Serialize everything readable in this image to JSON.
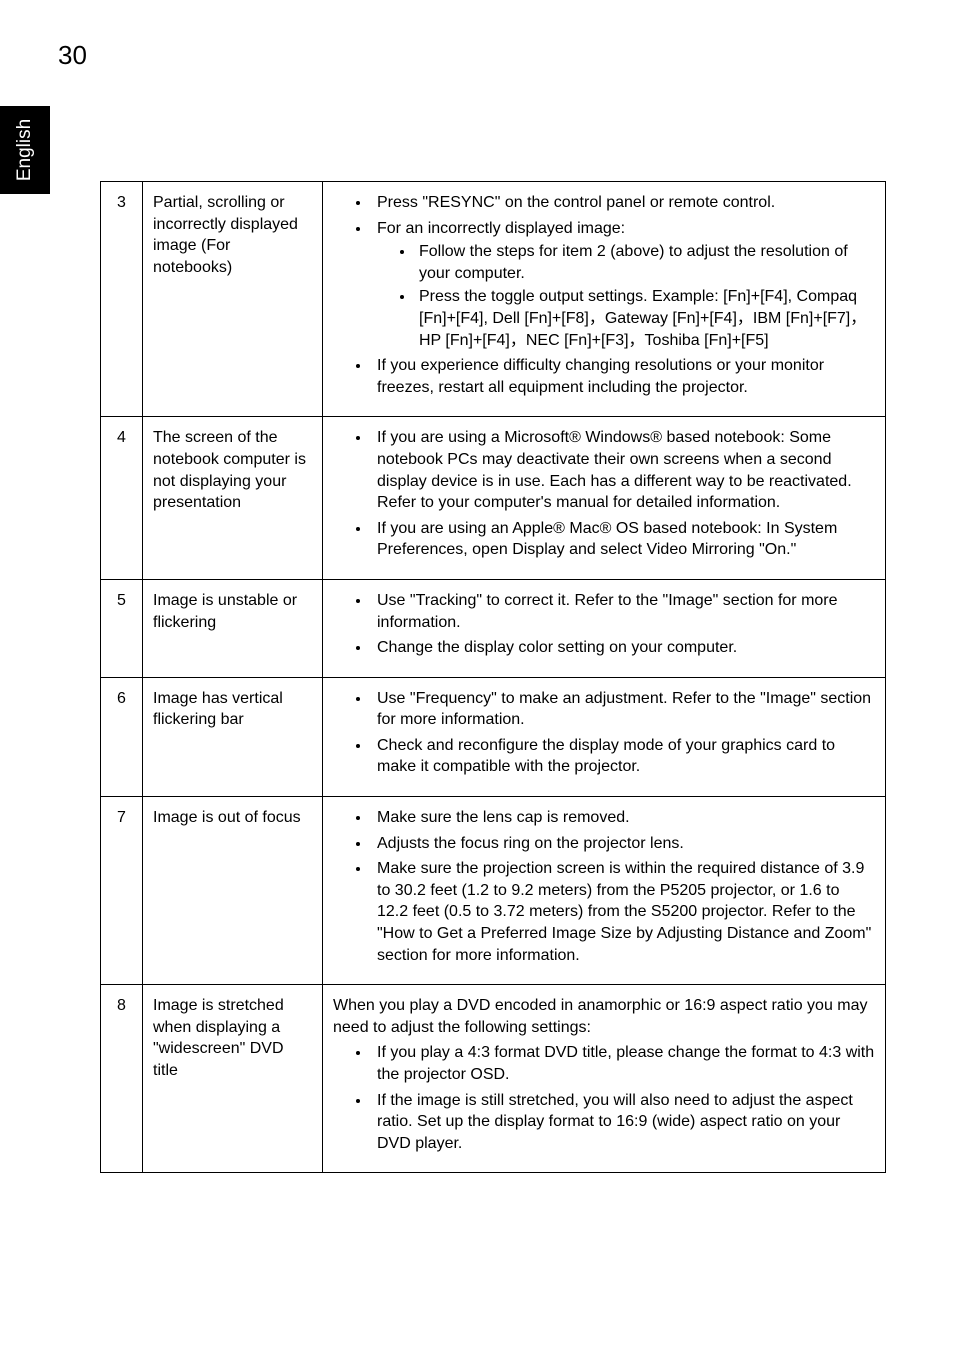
{
  "page": {
    "number": "30",
    "language": "English"
  },
  "table": {
    "row3": {
      "num": "3",
      "problem": "Partial, scrolling or incorrectly displayed image (For notebooks)",
      "b1": "Press \"RESYNC\" on the control panel or remote control.",
      "b2": "For an incorrectly displayed image:",
      "b2a": "Follow the steps for item 2 (above) to adjust the resolution of your computer.",
      "b2b": "Press the toggle output settings. Example: [Fn]+[F4], Compaq [Fn]+[F4], Dell [Fn]+[F8]，Gateway [Fn]+[F4]，IBM [Fn]+[F7]，HP [Fn]+[F4]，NEC [Fn]+[F3]，Toshiba [Fn]+[F5]",
      "b3": "If you experience difficulty changing resolutions or your monitor freezes, restart all equipment including the projector."
    },
    "row4": {
      "num": "4",
      "problem": "The screen of the notebook computer is not displaying your presentation",
      "b1": "If you are using a Microsoft® Windows® based notebook: Some notebook PCs may deactivate their own screens when a second display device is in use. Each has a different way to be reactivated. Refer to your computer's manual for detailed information.",
      "b2": "If you are using an Apple® Mac® OS based notebook: In System Preferences, open Display and select Video Mirroring \"On.\""
    },
    "row5": {
      "num": "5",
      "problem": "Image is unstable or flickering",
      "b1": "Use \"Tracking\" to correct it. Refer to the \"Image\" section for more information.",
      "b2": "Change the display color setting on your computer."
    },
    "row6": {
      "num": "6",
      "problem": "Image has vertical flickering bar",
      "b1": "Use \"Frequency\" to make an adjustment. Refer to the \"Image\" section for more information.",
      "b2": "Check and reconfigure the display mode of your graphics card to make it compatible with the projector."
    },
    "row7": {
      "num": "7",
      "problem": "Image is out of focus",
      "b1": "Make sure the lens cap is removed.",
      "b2": "Adjusts the focus ring on the projector lens.",
      "b3": "Make sure the projection screen is within the required distance of 3.9 to 30.2 feet (1.2 to 9.2 meters) from the P5205 projector, or 1.6 to 12.2 feet (0.5 to 3.72 meters) from the S5200 projector. Refer to the \"How to Get a Preferred Image Size by Adjusting Distance and Zoom\" section for more information."
    },
    "row8": {
      "num": "8",
      "problem": "Image is stretched when displaying a \"widescreen\" DVD title",
      "intro": "When you play a DVD encoded in anamorphic or 16:9 aspect ratio you may need to adjust the following settings:",
      "b1": "If you play a 4:3 format DVD title, please change the format to 4:3 with the projector OSD.",
      "b2": "If the image is still stretched, you will also need to adjust the aspect ratio. Set up the display format to 16:9 (wide) aspect ratio on your DVD player."
    }
  }
}
